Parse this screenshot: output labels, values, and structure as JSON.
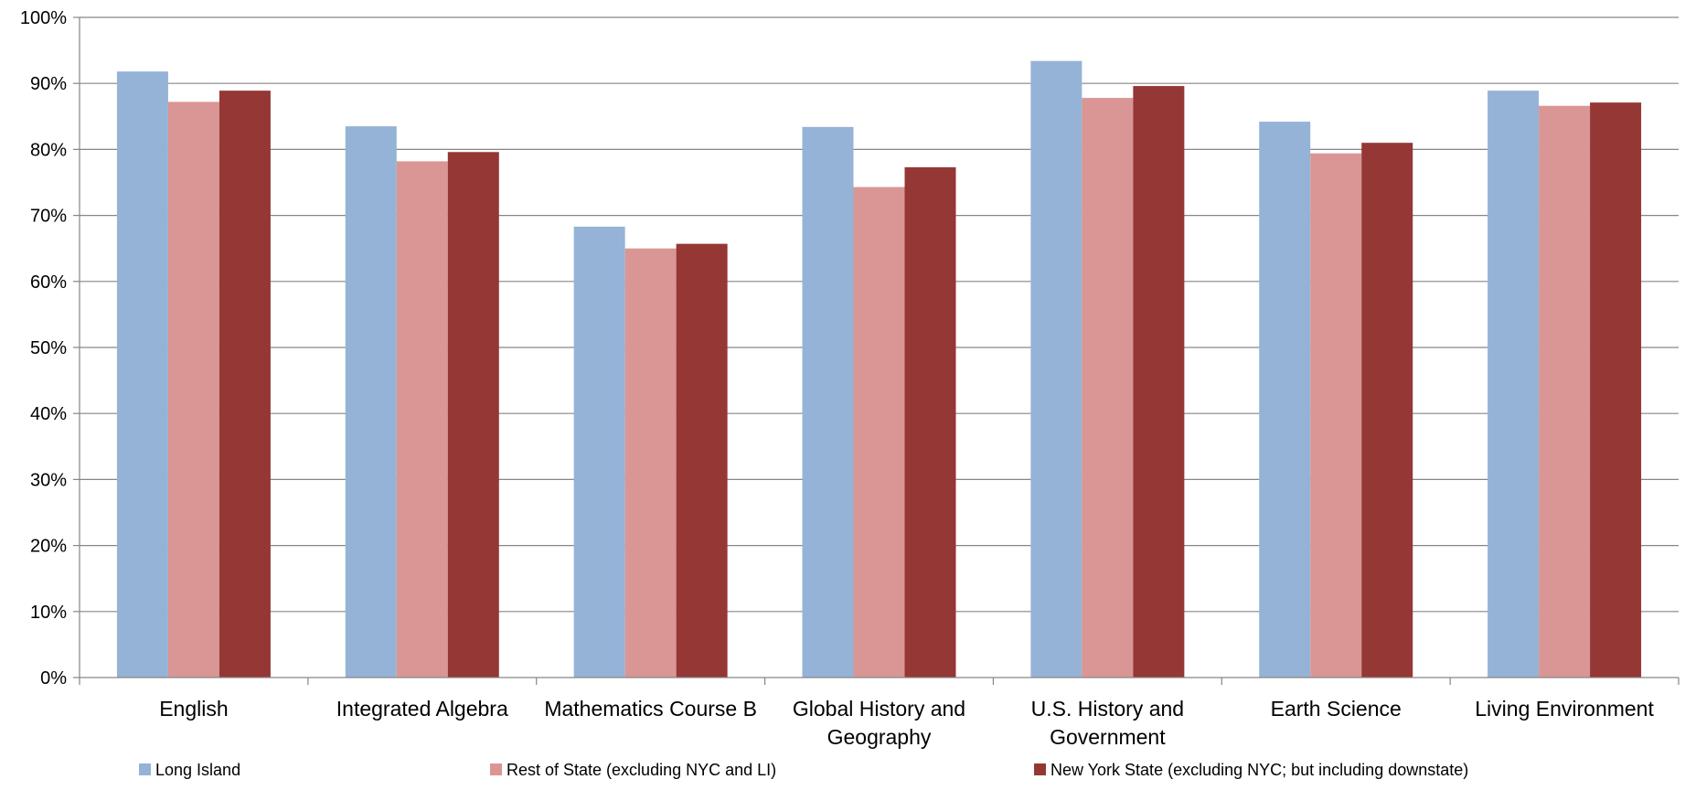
{
  "chart_data": {
    "type": "bar",
    "categories": [
      [
        "English"
      ],
      [
        "Integrated Algebra"
      ],
      [
        "Mathematics Course B"
      ],
      [
        "Global History and",
        "Geography"
      ],
      [
        "U.S. History and",
        "Government"
      ],
      [
        "Earth Science"
      ],
      [
        "Living Environment"
      ]
    ],
    "series": [
      {
        "name": "Long Island",
        "color": "#95B3D7",
        "values": [
          91.8,
          83.5,
          68.3,
          83.4,
          93.4,
          84.2,
          88.9
        ]
      },
      {
        "name": "Rest of State (excluding NYC and LI)",
        "color": "#D99694",
        "values": [
          87.2,
          78.2,
          65.0,
          74.3,
          87.8,
          79.4,
          86.6
        ]
      },
      {
        "name": "New York State (excluding NYC; but including downstate)",
        "color": "#953735",
        "values": [
          88.9,
          79.6,
          65.7,
          77.3,
          89.6,
          81.0,
          87.1
        ]
      }
    ],
    "y_ticks": [
      "0%",
      "10%",
      "20%",
      "30%",
      "40%",
      "50%",
      "60%",
      "70%",
      "80%",
      "90%",
      "100%"
    ],
    "ylim": [
      0,
      100
    ],
    "grid": true,
    "legend_position": "bottom",
    "title": "",
    "xlabel": "",
    "ylabel": ""
  }
}
